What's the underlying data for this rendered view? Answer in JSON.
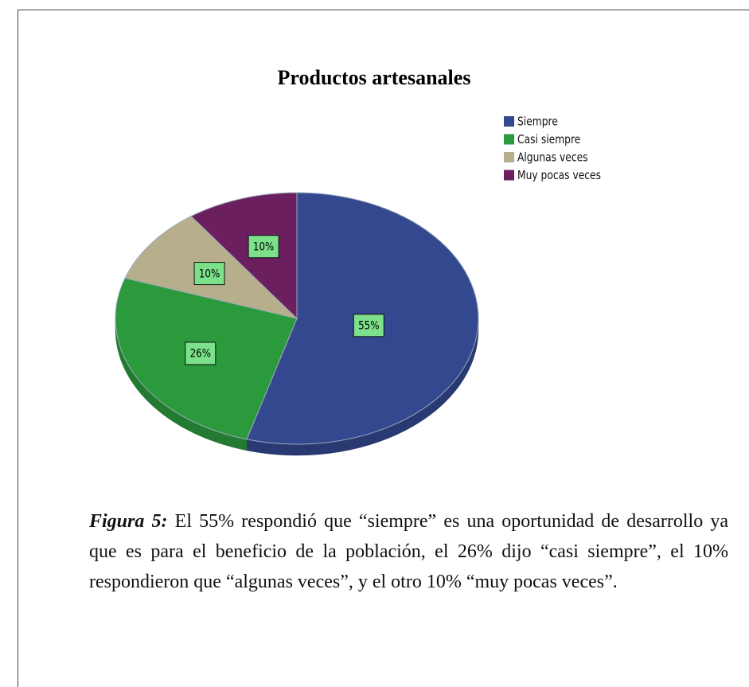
{
  "chart_data": {
    "type": "pie",
    "title": "Productos artesanales",
    "categories": [
      "Siempre",
      "Casi siempre",
      "Algunas veces",
      "Muy pocas veces"
    ],
    "values": [
      55,
      26,
      10,
      10
    ],
    "value_labels": [
      "55%",
      "26%",
      "10%",
      "10%"
    ],
    "colors": [
      "#33488f",
      "#2b9a3c",
      "#b7af8b",
      "#6b1f5e"
    ],
    "legend": "right"
  },
  "caption": {
    "label": "Figura 5:",
    "text": "El 55% respondió que “siempre” es una oportunidad de desarrollo ya que es para el beneficio de la población, el 26% dijo “casi siempre”, el 10% respondieron que “algunas veces”, y el otro 10% “muy pocas veces”."
  }
}
